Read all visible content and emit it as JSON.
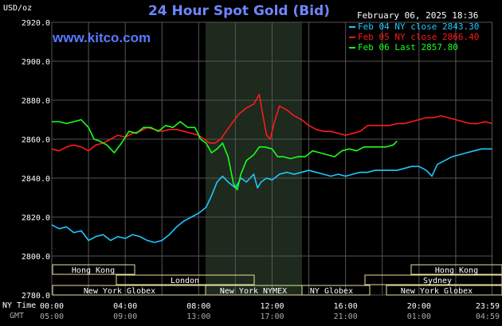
{
  "header": {
    "title": "24 Hour Spot Gold (Bid)",
    "units": "USD/oz",
    "timestamp": "February 06, 2025 18:36",
    "watermark": "www.kitco.com"
  },
  "time_rows": {
    "ny_label": "NY Time",
    "gmt_label": "GMT",
    "ny_times": [
      "00:00",
      "04:00",
      "08:00",
      "12:00",
      "16:00",
      "20:00",
      "23:59"
    ],
    "gmt_times": [
      "05:00",
      "09:00",
      "13:00",
      "17:00",
      "21:00",
      "01:00",
      "04:59"
    ]
  },
  "sessions": {
    "hong_kong_left": "Hong Kong",
    "london": "London",
    "new_york_globex_left": "New York Globex",
    "new_york_nymex": "New York NYMEX",
    "ny_globex": "NY Globex",
    "hong_kong_right": "Hong Kong",
    "sydney": "Sydney",
    "new_york_globex_right": "New York Globex"
  },
  "colors": {
    "background": "#000000",
    "grid": "#555555",
    "shaded_session": "#1d2a1d",
    "feb04": "#1ec8ff",
    "feb05": "#ff1a1a",
    "feb06": "#1aff1a",
    "session_box": "#e8e0a0"
  },
  "chart_data": {
    "type": "line",
    "title": "24 Hour Spot Gold (Bid)",
    "ylabel": "USD/oz",
    "ylim": [
      2780,
      2920
    ],
    "xlim": [
      0,
      24
    ],
    "yticks": [
      "2920.0",
      "2900.0",
      "2880.0",
      "2860.0",
      "2840.0",
      "2820.0",
      "2800.0",
      "2780.0"
    ],
    "grid": true,
    "legend_position": "top-right",
    "series": [
      {
        "name": "Feb 04 NY close 2843.30",
        "color": "#1ec8ff",
        "points": [
          [
            0,
            2816
          ],
          [
            0.4,
            2814
          ],
          [
            0.8,
            2815
          ],
          [
            1.2,
            2812
          ],
          [
            1.6,
            2813
          ],
          [
            2.0,
            2808
          ],
          [
            2.4,
            2810
          ],
          [
            2.8,
            2811
          ],
          [
            3.2,
            2808
          ],
          [
            3.6,
            2810
          ],
          [
            4.0,
            2809
          ],
          [
            4.4,
            2811
          ],
          [
            4.8,
            2810
          ],
          [
            5.2,
            2808
          ],
          [
            5.6,
            2807
          ],
          [
            6.0,
            2808
          ],
          [
            6.4,
            2811
          ],
          [
            6.8,
            2815
          ],
          [
            7.2,
            2818
          ],
          [
            7.6,
            2820
          ],
          [
            8.0,
            2822
          ],
          [
            8.4,
            2825
          ],
          [
            8.7,
            2831
          ],
          [
            9.0,
            2838
          ],
          [
            9.3,
            2841
          ],
          [
            9.6,
            2838
          ],
          [
            10.0,
            2835
          ],
          [
            10.3,
            2840
          ],
          [
            10.6,
            2838
          ],
          [
            10.8,
            2840
          ],
          [
            11.0,
            2842
          ],
          [
            11.2,
            2835
          ],
          [
            11.4,
            2838
          ],
          [
            11.7,
            2840
          ],
          [
            12.0,
            2839
          ],
          [
            12.4,
            2842
          ],
          [
            12.8,
            2843
          ],
          [
            13.2,
            2842
          ],
          [
            13.6,
            2843
          ],
          [
            14.0,
            2844
          ],
          [
            14.4,
            2843
          ],
          [
            14.8,
            2842
          ],
          [
            15.2,
            2841
          ],
          [
            15.6,
            2842
          ],
          [
            16.0,
            2841
          ],
          [
            16.4,
            2842
          ],
          [
            16.8,
            2843
          ],
          [
            17.2,
            2843
          ],
          [
            17.6,
            2844
          ],
          [
            18.0,
            2844
          ],
          [
            18.4,
            2844
          ],
          [
            18.8,
            2844
          ],
          [
            19.2,
            2845
          ],
          [
            19.6,
            2846
          ],
          [
            20.0,
            2846
          ],
          [
            20.4,
            2844
          ],
          [
            20.7,
            2841
          ],
          [
            21.0,
            2847
          ],
          [
            21.4,
            2849
          ],
          [
            21.8,
            2851
          ],
          [
            22.2,
            2852
          ],
          [
            22.6,
            2853
          ],
          [
            23.0,
            2854
          ],
          [
            23.4,
            2855
          ],
          [
            23.98,
            2855
          ]
        ]
      },
      {
        "name": "Feb 05 NY close 2866.40",
        "color": "#ff1a1a",
        "points": [
          [
            0,
            2855
          ],
          [
            0.4,
            2854
          ],
          [
            0.8,
            2856
          ],
          [
            1.2,
            2857
          ],
          [
            1.6,
            2856
          ],
          [
            2.0,
            2854
          ],
          [
            2.4,
            2857
          ],
          [
            2.8,
            2858
          ],
          [
            3.2,
            2860
          ],
          [
            3.6,
            2862
          ],
          [
            4.0,
            2861
          ],
          [
            4.4,
            2863
          ],
          [
            4.8,
            2864
          ],
          [
            5.2,
            2866
          ],
          [
            5.6,
            2865
          ],
          [
            6.0,
            2864
          ],
          [
            6.4,
            2865
          ],
          [
            6.8,
            2865
          ],
          [
            7.2,
            2864
          ],
          [
            7.6,
            2863
          ],
          [
            8.0,
            2862
          ],
          [
            8.3,
            2860
          ],
          [
            8.6,
            2858
          ],
          [
            8.9,
            2858
          ],
          [
            9.2,
            2860
          ],
          [
            9.5,
            2864
          ],
          [
            9.8,
            2868
          ],
          [
            10.2,
            2873
          ],
          [
            10.6,
            2876
          ],
          [
            11.0,
            2878
          ],
          [
            11.3,
            2883
          ],
          [
            11.5,
            2872
          ],
          [
            11.7,
            2862
          ],
          [
            11.9,
            2860
          ],
          [
            12.1,
            2868
          ],
          [
            12.4,
            2877
          ],
          [
            12.8,
            2875
          ],
          [
            13.2,
            2872
          ],
          [
            13.6,
            2870
          ],
          [
            14.0,
            2867
          ],
          [
            14.4,
            2865
          ],
          [
            14.8,
            2864
          ],
          [
            15.2,
            2864
          ],
          [
            15.6,
            2863
          ],
          [
            16.0,
            2862
          ],
          [
            16.4,
            2863
          ],
          [
            16.8,
            2864
          ],
          [
            17.2,
            2867
          ],
          [
            17.6,
            2867
          ],
          [
            18.0,
            2867
          ],
          [
            18.4,
            2867
          ],
          [
            18.8,
            2868
          ],
          [
            19.2,
            2868
          ],
          [
            19.6,
            2869
          ],
          [
            20.0,
            2870
          ],
          [
            20.4,
            2871
          ],
          [
            20.8,
            2871
          ],
          [
            21.2,
            2872
          ],
          [
            21.6,
            2871
          ],
          [
            22.0,
            2870
          ],
          [
            22.4,
            2869
          ],
          [
            22.8,
            2868
          ],
          [
            23.2,
            2868
          ],
          [
            23.6,
            2869
          ],
          [
            23.98,
            2868
          ]
        ]
      },
      {
        "name": "Feb 06 Last 2857.80",
        "color": "#1aff1a",
        "points": [
          [
            0,
            2869
          ],
          [
            0.4,
            2869
          ],
          [
            0.8,
            2868
          ],
          [
            1.2,
            2869
          ],
          [
            1.6,
            2870
          ],
          [
            2.0,
            2866
          ],
          [
            2.3,
            2860
          ],
          [
            2.6,
            2859
          ],
          [
            3.0,
            2857
          ],
          [
            3.4,
            2853
          ],
          [
            3.8,
            2858
          ],
          [
            4.2,
            2864
          ],
          [
            4.6,
            2863
          ],
          [
            5.0,
            2866
          ],
          [
            5.4,
            2866
          ],
          [
            5.8,
            2864
          ],
          [
            6.2,
            2867
          ],
          [
            6.6,
            2866
          ],
          [
            7.0,
            2869
          ],
          [
            7.4,
            2866
          ],
          [
            7.8,
            2866
          ],
          [
            8.1,
            2860
          ],
          [
            8.4,
            2858
          ],
          [
            8.7,
            2853
          ],
          [
            9.0,
            2855
          ],
          [
            9.3,
            2858
          ],
          [
            9.6,
            2851
          ],
          [
            9.9,
            2837
          ],
          [
            10.1,
            2834
          ],
          [
            10.3,
            2842
          ],
          [
            10.6,
            2849
          ],
          [
            11.0,
            2852
          ],
          [
            11.3,
            2856
          ],
          [
            11.6,
            2856
          ],
          [
            12.0,
            2855
          ],
          [
            12.3,
            2851
          ],
          [
            12.6,
            2851
          ],
          [
            13.0,
            2850
          ],
          [
            13.4,
            2851
          ],
          [
            13.8,
            2851
          ],
          [
            14.2,
            2854
          ],
          [
            14.6,
            2853
          ],
          [
            15.0,
            2852
          ],
          [
            15.4,
            2851
          ],
          [
            15.8,
            2854
          ],
          [
            16.2,
            2855
          ],
          [
            16.6,
            2854
          ],
          [
            17.0,
            2856
          ],
          [
            17.4,
            2856
          ],
          [
            17.8,
            2856
          ],
          [
            18.2,
            2856
          ],
          [
            18.6,
            2857
          ],
          [
            18.8,
            2859
          ]
        ]
      }
    ]
  }
}
